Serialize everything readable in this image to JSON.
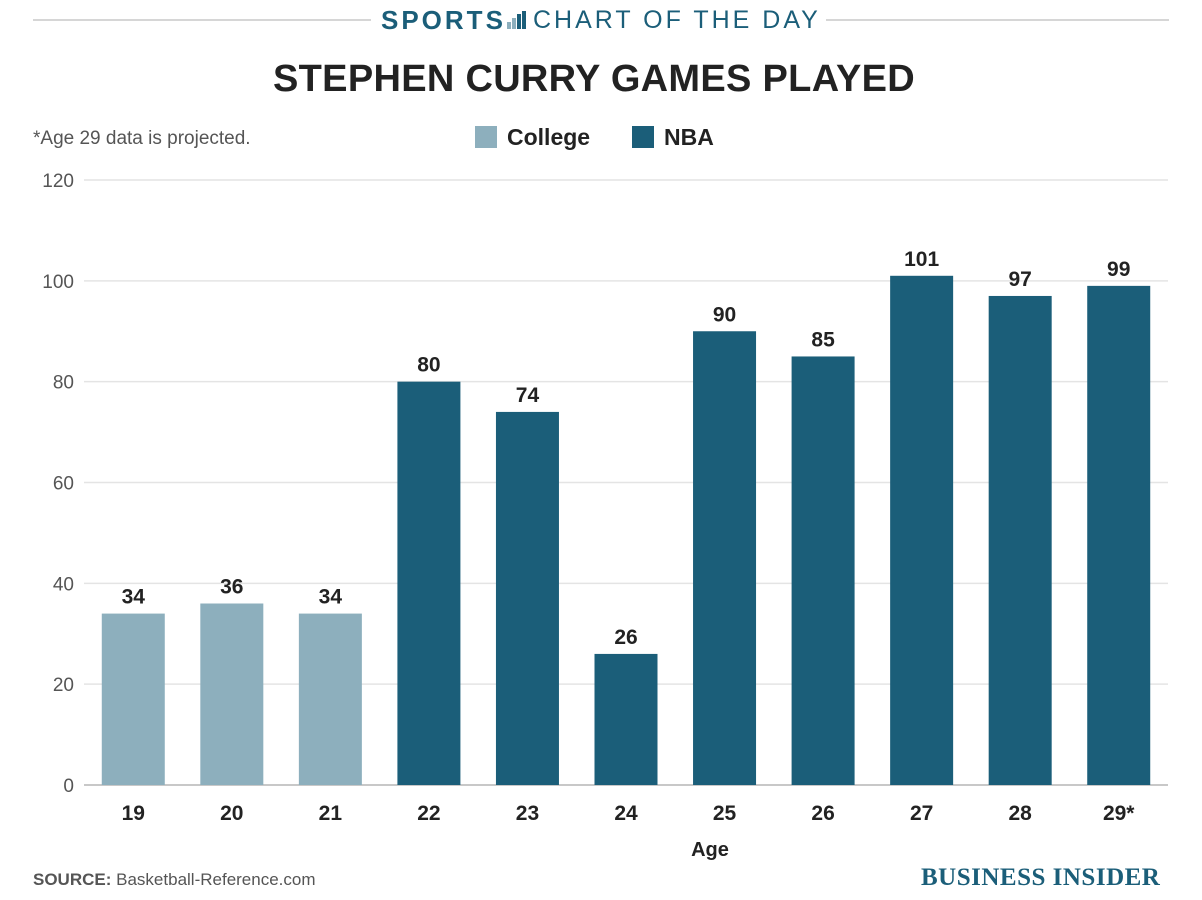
{
  "header": {
    "section": "SPORTS",
    "series": "CHART OF THE DAY"
  },
  "note": "*Age 29 data is projected.",
  "source_label": "SOURCE:",
  "source_text": "Basketball-Reference.com",
  "brand": "BUSINESS INSIDER",
  "colors": {
    "college": "#8dafbd",
    "nba": "#1b5e79",
    "brand": "#1b5e79",
    "grid": "#e4e4e4",
    "text": "#222222"
  },
  "chart_data": {
    "type": "bar",
    "title": "STEPHEN CURRY GAMES PLAYED",
    "xlabel": "Age",
    "ylabel": "",
    "ylim": [
      0,
      120
    ],
    "yticks": [
      0,
      20,
      40,
      60,
      80,
      100,
      120
    ],
    "grid": true,
    "legend_position": "top-center",
    "legend": [
      {
        "name": "College",
        "color": "#8dafbd"
      },
      {
        "name": "NBA",
        "color": "#1b5e79"
      }
    ],
    "categories": [
      "19",
      "20",
      "21",
      "22",
      "23",
      "24",
      "25",
      "26",
      "27",
      "28",
      "29*"
    ],
    "values": [
      34,
      36,
      34,
      80,
      74,
      26,
      90,
      85,
      101,
      97,
      99
    ],
    "groups": [
      "College",
      "College",
      "College",
      "NBA",
      "NBA",
      "NBA",
      "NBA",
      "NBA",
      "NBA",
      "NBA",
      "NBA"
    ]
  }
}
